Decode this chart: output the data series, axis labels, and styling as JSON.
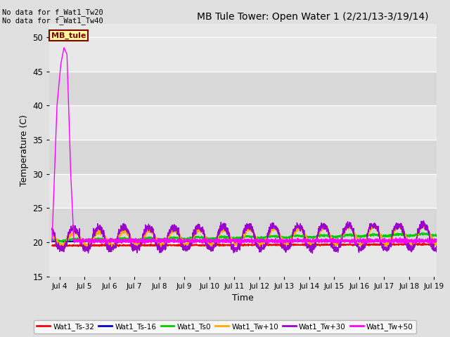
{
  "title": "MB Tule Tower: Open Water 1 (2/21/13-3/19/14)",
  "xlabel": "Time",
  "ylabel": "Temperature (C)",
  "ylim": [
    15,
    52
  ],
  "yticks": [
    15,
    20,
    25,
    30,
    35,
    40,
    45,
    50
  ],
  "xlim_days": [
    3.6,
    19.1
  ],
  "xtick_days": [
    4,
    5,
    6,
    7,
    8,
    9,
    10,
    11,
    12,
    13,
    14,
    15,
    16,
    17,
    18,
    19
  ],
  "xtick_labels": [
    "Jul 4",
    "Jul 5",
    "Jul 6",
    "Jul 7",
    "Jul 8",
    "Jul 9",
    "Jul 10",
    "Jul 11",
    "Jul 12",
    "Jul 13",
    "Jul 14",
    "Jul 15",
    "Jul 16",
    "Jul 17",
    "Jul 18",
    "Jul 19"
  ],
  "fig_bg_color": "#e0e0e0",
  "plot_bg_color": "#e8e8e8",
  "band_light": "#e8e8e8",
  "band_dark": "#d8d8d8",
  "grid_color": "#ffffff",
  "annotation_text": "No data for f_Wat1_Tw20\nNo data for f_Wat1_Tw40",
  "legend_label": "MB_tule",
  "legend_bg": "#ffff99",
  "legend_border": "#800000",
  "series_colors": {
    "Ts32": "#ff0000",
    "Ts16": "#0000cc",
    "Ts0": "#00cc00",
    "Tw10": "#ffaa00",
    "Tw30": "#9900cc",
    "Tw50": "#ff00ff"
  },
  "legend_labels": [
    "Wat1_Ts-32",
    "Wat1_Ts-16",
    "Wat1_Ts0",
    "Wat1_Tw+10",
    "Wat1_Tw+30",
    "Wat1_Tw+50"
  ]
}
